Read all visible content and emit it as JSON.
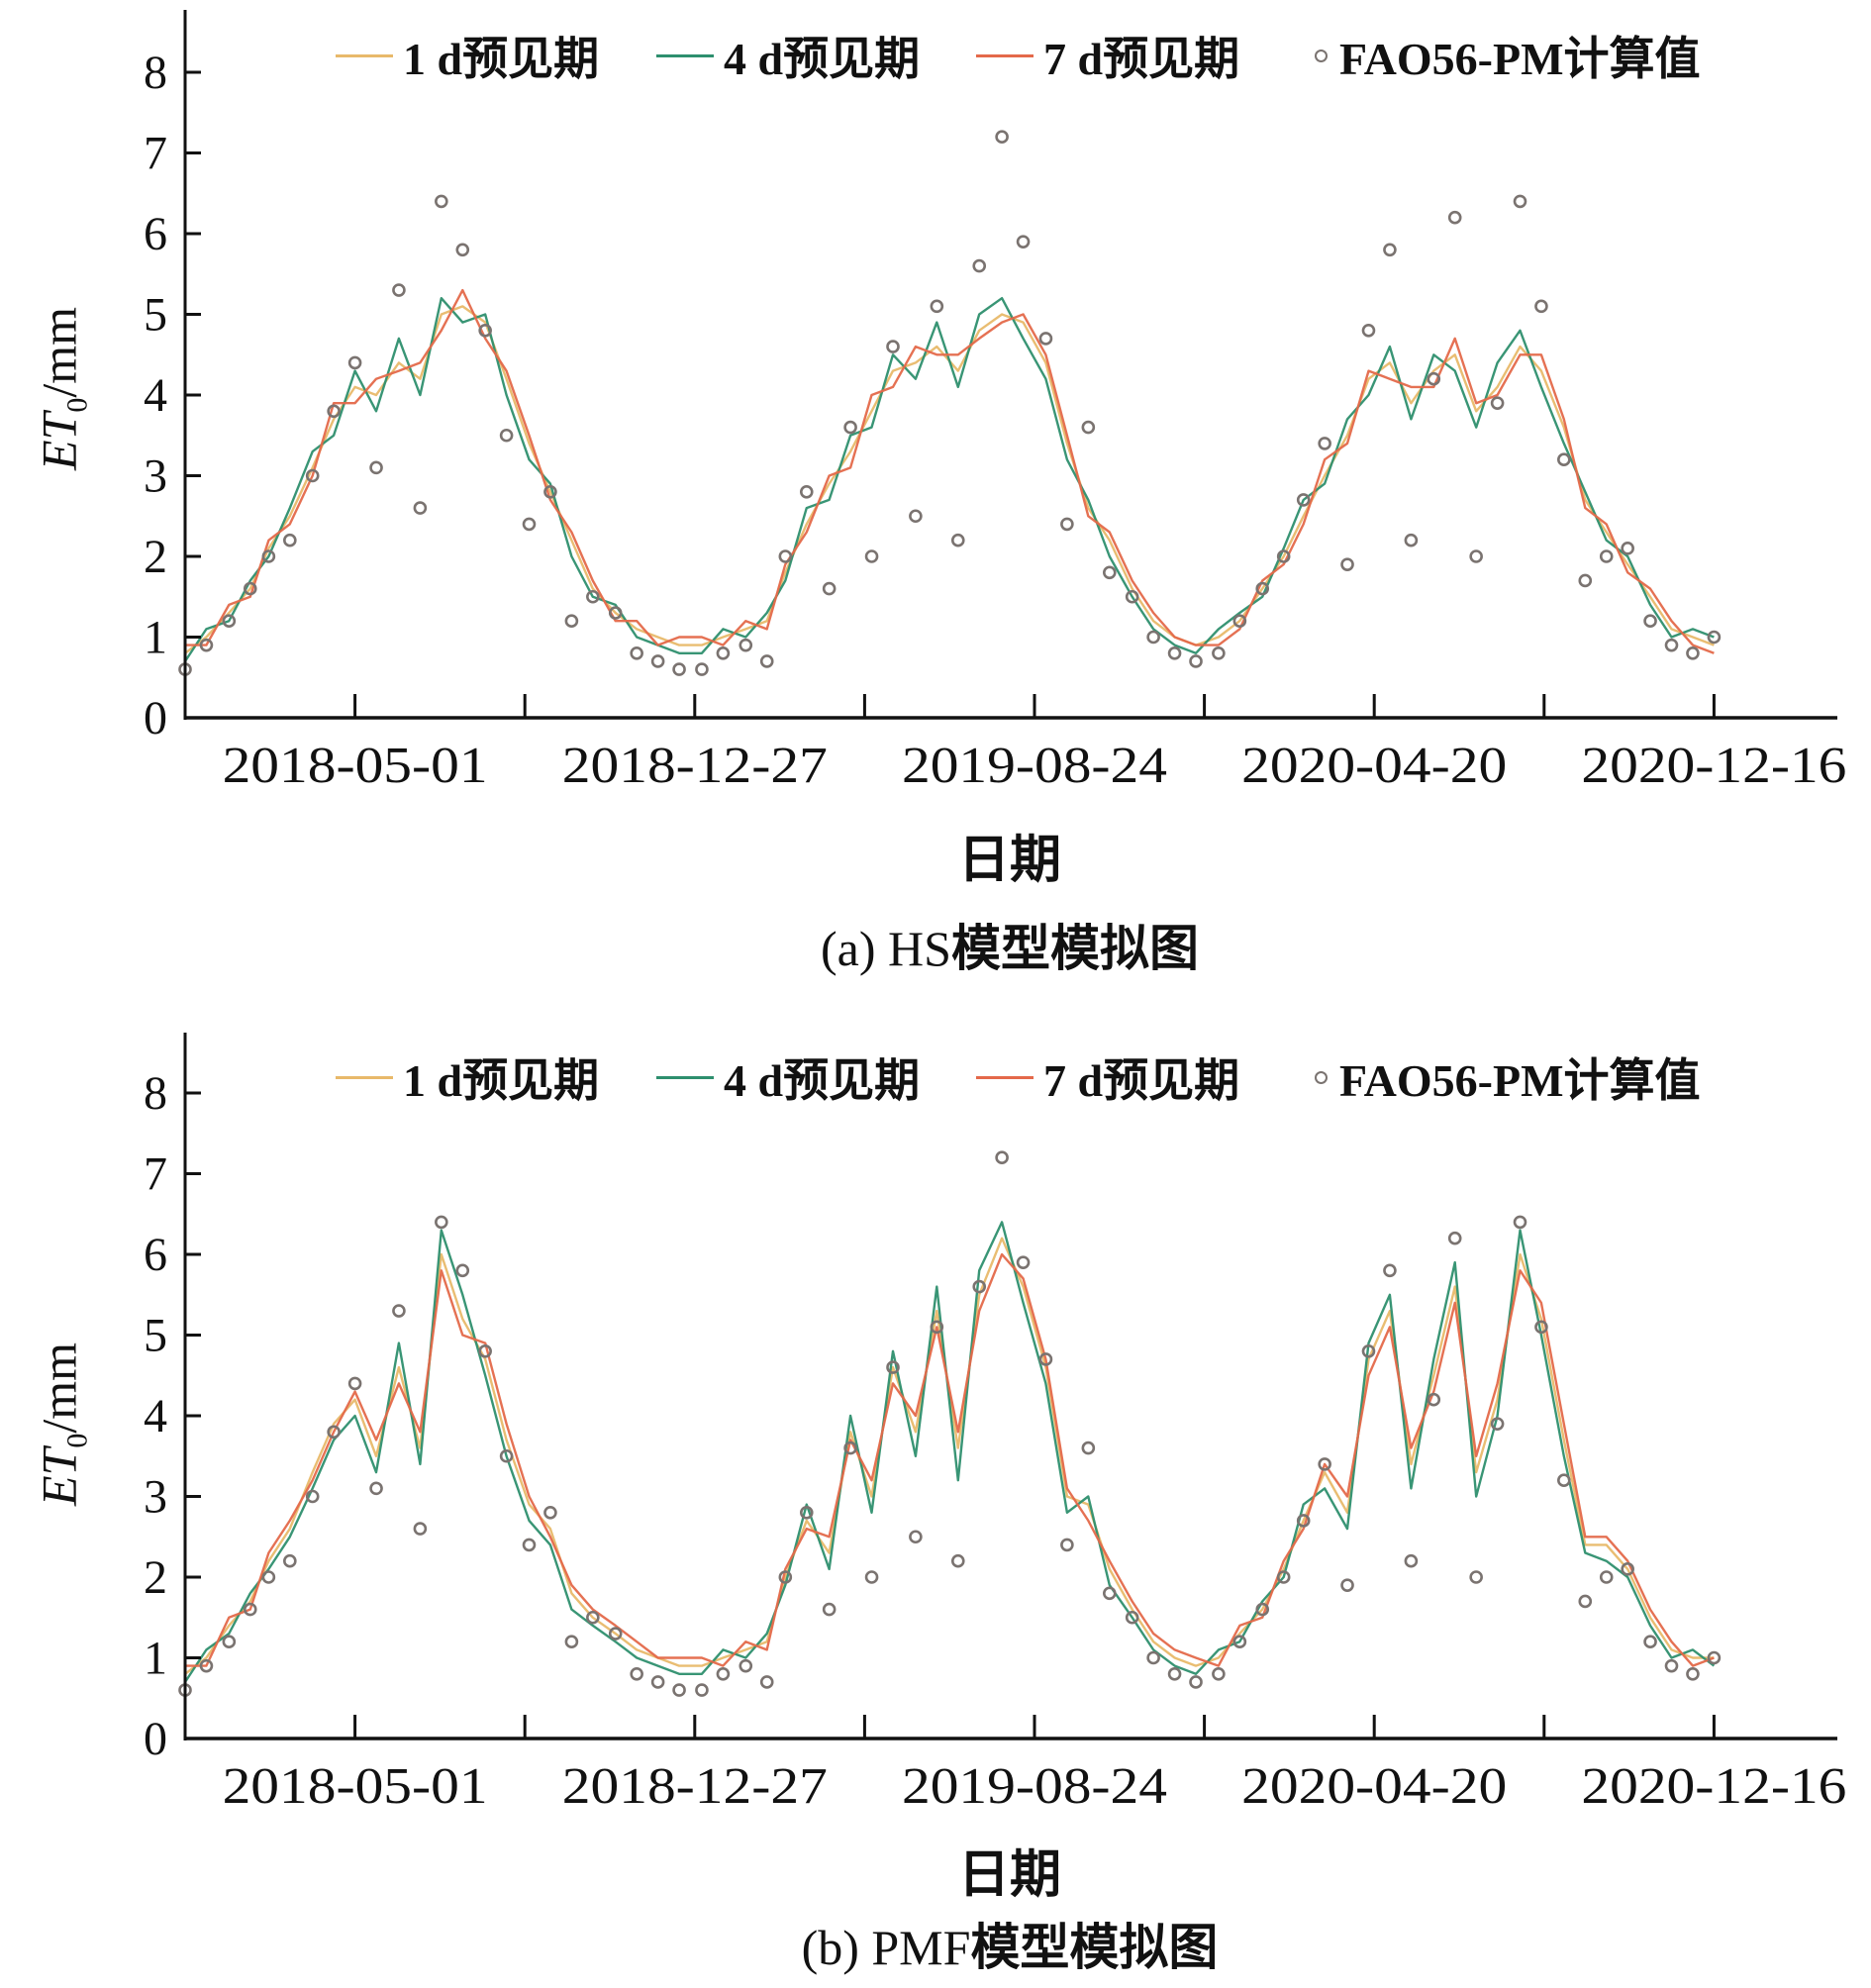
{
  "legend": {
    "items": [
      {
        "label": "1 d预见期",
        "color": "#e8b96a",
        "marker": "line"
      },
      {
        "label": "4 d预见期",
        "color": "#2e8f6e",
        "marker": "line"
      },
      {
        "label": "7 d预见期",
        "color": "#e4694a",
        "marker": "line"
      },
      {
        "label": "FAO56-PM计算值",
        "color": "#7a7370",
        "marker": "open-circle"
      }
    ]
  },
  "chart_data": [
    {
      "type": "line",
      "caption_prefix": "(a) HS",
      "caption_suffix": "模型模拟图",
      "xlabel": "日期",
      "ylabel_main": "ET",
      "ylabel_sub": "0",
      "ylabel_unit": "/mm",
      "ylim": [
        0,
        8
      ],
      "yticks": [
        0,
        1,
        2,
        3,
        4,
        5,
        6,
        7,
        8
      ],
      "xticks_labeled": [
        "2018-05-01",
        "2018-12-27",
        "2019-08-24",
        "2020-04-20",
        "2020-12-16"
      ],
      "grid": false,
      "legend_position": "top",
      "x": [
        "2018-01-01",
        "2018-01-16",
        "2018-02-01",
        "2018-02-16",
        "2018-03-01",
        "2018-03-16",
        "2018-04-01",
        "2018-04-16",
        "2018-05-01",
        "2018-05-16",
        "2018-06-01",
        "2018-06-16",
        "2018-07-01",
        "2018-07-16",
        "2018-08-01",
        "2018-08-16",
        "2018-09-01",
        "2018-09-16",
        "2018-10-01",
        "2018-10-16",
        "2018-11-01",
        "2018-11-16",
        "2018-12-01",
        "2018-12-16",
        "2019-01-01",
        "2019-01-16",
        "2019-02-01",
        "2019-02-16",
        "2019-03-01",
        "2019-03-16",
        "2019-04-01",
        "2019-04-16",
        "2019-05-01",
        "2019-05-16",
        "2019-06-01",
        "2019-06-16",
        "2019-07-01",
        "2019-07-16",
        "2019-08-01",
        "2019-08-16",
        "2019-09-01",
        "2019-09-16",
        "2019-10-01",
        "2019-10-16",
        "2019-11-01",
        "2019-11-16",
        "2019-12-01",
        "2019-12-16",
        "2020-01-01",
        "2020-01-16",
        "2020-02-01",
        "2020-02-16",
        "2020-03-01",
        "2020-03-16",
        "2020-04-01",
        "2020-04-16",
        "2020-05-01",
        "2020-05-16",
        "2020-06-01",
        "2020-06-16",
        "2020-07-01",
        "2020-07-16",
        "2020-08-01",
        "2020-08-16",
        "2020-09-01",
        "2020-09-16",
        "2020-10-01",
        "2020-10-16",
        "2020-11-01",
        "2020-11-16",
        "2020-12-01",
        "2020-12-16"
      ],
      "series": [
        {
          "name": "1 d预见期",
          "type": "line",
          "values": [
            0.8,
            1.0,
            1.3,
            1.6,
            2.1,
            2.5,
            3.1,
            3.7,
            4.1,
            4.0,
            4.4,
            4.2,
            5.0,
            5.1,
            4.9,
            4.2,
            3.4,
            2.8,
            2.2,
            1.6,
            1.3,
            1.1,
            1.0,
            0.9,
            0.9,
            1.0,
            1.1,
            1.2,
            1.8,
            2.4,
            2.9,
            3.3,
            3.8,
            4.3,
            4.4,
            4.6,
            4.3,
            4.8,
            5.0,
            4.9,
            4.4,
            3.4,
            2.6,
            2.2,
            1.6,
            1.2,
            1.0,
            0.9,
            1.0,
            1.2,
            1.6,
            2.0,
            2.5,
            3.0,
            3.5,
            4.2,
            4.4,
            3.9,
            4.3,
            4.5,
            3.8,
            4.1,
            4.6,
            4.3,
            3.6,
            2.7,
            2.3,
            1.9,
            1.5,
            1.1,
            1.0,
            0.9
          ]
        },
        {
          "name": "4 d预见期",
          "type": "line",
          "values": [
            0.7,
            1.1,
            1.2,
            1.7,
            2.0,
            2.6,
            3.3,
            3.5,
            4.3,
            3.8,
            4.7,
            4.0,
            5.2,
            4.9,
            5.0,
            4.0,
            3.2,
            2.9,
            2.0,
            1.5,
            1.4,
            1.0,
            0.9,
            0.8,
            0.8,
            1.1,
            1.0,
            1.3,
            1.7,
            2.6,
            2.7,
            3.5,
            3.6,
            4.5,
            4.2,
            4.9,
            4.1,
            5.0,
            5.2,
            4.7,
            4.2,
            3.2,
            2.7,
            2.0,
            1.5,
            1.1,
            0.9,
            0.8,
            1.1,
            1.3,
            1.5,
            2.1,
            2.7,
            2.9,
            3.7,
            4.0,
            4.6,
            3.7,
            4.5,
            4.3,
            3.6,
            4.4,
            4.8,
            4.1,
            3.4,
            2.8,
            2.2,
            2.0,
            1.4,
            1.0,
            1.1,
            1.0
          ]
        },
        {
          "name": "7 d预见期",
          "type": "line",
          "values": [
            0.9,
            0.9,
            1.4,
            1.5,
            2.2,
            2.4,
            3.0,
            3.9,
            3.9,
            4.2,
            4.3,
            4.4,
            4.8,
            5.3,
            4.7,
            4.3,
            3.5,
            2.7,
            2.3,
            1.7,
            1.2,
            1.2,
            0.9,
            1.0,
            1.0,
            0.9,
            1.2,
            1.1,
            1.9,
            2.3,
            3.0,
            3.1,
            4.0,
            4.1,
            4.6,
            4.5,
            4.5,
            4.7,
            4.9,
            5.0,
            4.5,
            3.5,
            2.5,
            2.3,
            1.7,
            1.3,
            1.0,
            0.9,
            0.9,
            1.1,
            1.7,
            1.9,
            2.4,
            3.2,
            3.4,
            4.3,
            4.2,
            4.1,
            4.1,
            4.7,
            3.9,
            4.0,
            4.5,
            4.5,
            3.7,
            2.6,
            2.4,
            1.8,
            1.6,
            1.2,
            0.9,
            0.8
          ]
        },
        {
          "name": "FAO56-PM计算值",
          "type": "scatter",
          "values": [
            0.6,
            0.9,
            1.2,
            1.6,
            2.0,
            2.2,
            3.0,
            3.8,
            4.4,
            3.1,
            5.3,
            2.6,
            6.4,
            5.8,
            4.8,
            3.5,
            2.4,
            2.8,
            1.2,
            1.5,
            1.3,
            0.8,
            0.7,
            0.6,
            0.6,
            0.8,
            0.9,
            0.7,
            2.0,
            2.8,
            1.6,
            3.6,
            2.0,
            4.6,
            2.5,
            5.1,
            2.2,
            5.6,
            7.2,
            5.9,
            4.7,
            2.4,
            3.6,
            1.8,
            1.5,
            1.0,
            0.8,
            0.7,
            0.8,
            1.2,
            1.6,
            2.0,
            2.7,
            3.4,
            1.9,
            4.8,
            5.8,
            2.2,
            4.2,
            6.2,
            2.0,
            3.9,
            6.4,
            5.1,
            3.2,
            1.7,
            2.0,
            2.1,
            1.2,
            0.9,
            0.8,
            1.0
          ]
        }
      ]
    },
    {
      "type": "line",
      "caption_prefix": "(b) PMF",
      "caption_suffix": "模型模拟图",
      "xlabel": "日期",
      "ylabel_main": "ET",
      "ylabel_sub": "0",
      "ylabel_unit": "/mm",
      "ylim": [
        0,
        8
      ],
      "yticks": [
        0,
        1,
        2,
        3,
        4,
        5,
        6,
        7,
        8
      ],
      "xticks_labeled": [
        "2018-05-01",
        "2018-12-27",
        "2019-08-24",
        "2020-04-20",
        "2020-12-16"
      ],
      "grid": false,
      "legend_position": "top",
      "x": [
        "2018-01-01",
        "2018-01-16",
        "2018-02-01",
        "2018-02-16",
        "2018-03-01",
        "2018-03-16",
        "2018-04-01",
        "2018-04-16",
        "2018-05-01",
        "2018-05-16",
        "2018-06-01",
        "2018-06-16",
        "2018-07-01",
        "2018-07-16",
        "2018-08-01",
        "2018-08-16",
        "2018-09-01",
        "2018-09-16",
        "2018-10-01",
        "2018-10-16",
        "2018-11-01",
        "2018-11-16",
        "2018-12-01",
        "2018-12-16",
        "2019-01-01",
        "2019-01-16",
        "2019-02-01",
        "2019-02-16",
        "2019-03-01",
        "2019-03-16",
        "2019-04-01",
        "2019-04-16",
        "2019-05-01",
        "2019-05-16",
        "2019-06-01",
        "2019-06-16",
        "2019-07-01",
        "2019-07-16",
        "2019-08-01",
        "2019-08-16",
        "2019-09-01",
        "2019-09-16",
        "2019-10-01",
        "2019-10-16",
        "2019-11-01",
        "2019-11-16",
        "2019-12-01",
        "2019-12-16",
        "2020-01-01",
        "2020-01-16",
        "2020-02-01",
        "2020-02-16",
        "2020-03-01",
        "2020-03-16",
        "2020-04-01",
        "2020-04-16",
        "2020-05-01",
        "2020-05-16",
        "2020-06-01",
        "2020-06-16",
        "2020-07-01",
        "2020-07-16",
        "2020-08-01",
        "2020-08-16",
        "2020-09-01",
        "2020-09-16",
        "2020-10-01",
        "2020-10-16",
        "2020-11-01",
        "2020-11-16",
        "2020-12-01",
        "2020-12-16"
      ],
      "series": [
        {
          "name": "1 d预见期",
          "type": "line",
          "values": [
            0.8,
            1.0,
            1.4,
            1.7,
            2.2,
            2.6,
            3.3,
            3.9,
            4.2,
            3.5,
            4.6,
            3.6,
            6.0,
            5.2,
            4.7,
            3.7,
            2.9,
            2.6,
            1.8,
            1.5,
            1.3,
            1.1,
            1.0,
            0.9,
            0.9,
            1.0,
            1.1,
            1.2,
            2.0,
            2.7,
            2.3,
            3.8,
            3.0,
            4.6,
            3.8,
            5.3,
            3.6,
            5.5,
            6.2,
            5.6,
            4.6,
            3.0,
            2.9,
            2.1,
            1.6,
            1.2,
            1.0,
            0.9,
            1.0,
            1.3,
            1.6,
            2.1,
            2.7,
            3.3,
            2.8,
            4.7,
            5.3,
            3.4,
            4.5,
            5.6,
            3.3,
            4.2,
            6.0,
            5.2,
            3.7,
            2.4,
            2.4,
            2.1,
            1.5,
            1.1,
            1.0,
            1.0
          ]
        },
        {
          "name": "4 d预见期",
          "type": "line",
          "values": [
            0.7,
            1.1,
            1.3,
            1.8,
            2.1,
            2.5,
            3.1,
            3.7,
            4.0,
            3.3,
            4.9,
            3.4,
            6.3,
            5.5,
            4.5,
            3.5,
            2.7,
            2.4,
            1.6,
            1.4,
            1.2,
            1.0,
            0.9,
            0.8,
            0.8,
            1.1,
            1.0,
            1.3,
            1.9,
            2.9,
            2.1,
            4.0,
            2.8,
            4.8,
            3.5,
            5.6,
            3.2,
            5.8,
            6.4,
            5.4,
            4.4,
            2.8,
            3.0,
            1.9,
            1.5,
            1.1,
            0.9,
            0.8,
            1.1,
            1.2,
            1.7,
            2.0,
            2.9,
            3.1,
            2.6,
            4.9,
            5.5,
            3.1,
            4.7,
            5.9,
            3.0,
            4.0,
            6.3,
            5.0,
            3.5,
            2.3,
            2.2,
            2.0,
            1.4,
            1.0,
            1.1,
            0.9
          ]
        },
        {
          "name": "7 d预见期",
          "type": "line",
          "values": [
            0.9,
            0.9,
            1.5,
            1.6,
            2.3,
            2.7,
            3.2,
            3.8,
            4.3,
            3.7,
            4.4,
            3.8,
            5.8,
            5.0,
            4.9,
            3.9,
            3.0,
            2.5,
            1.9,
            1.6,
            1.4,
            1.2,
            1.0,
            1.0,
            1.0,
            0.9,
            1.2,
            1.1,
            2.1,
            2.6,
            2.5,
            3.7,
            3.2,
            4.4,
            4.0,
            5.1,
            3.8,
            5.3,
            6.0,
            5.7,
            4.7,
            3.1,
            2.7,
            2.2,
            1.7,
            1.3,
            1.1,
            1.0,
            0.9,
            1.4,
            1.5,
            2.2,
            2.6,
            3.4,
            3.0,
            4.5,
            5.1,
            3.6,
            4.3,
            5.4,
            3.5,
            4.4,
            5.8,
            5.4,
            3.9,
            2.5,
            2.5,
            2.2,
            1.6,
            1.2,
            0.9,
            1.0
          ]
        },
        {
          "name": "FAO56-PM计算值",
          "type": "scatter",
          "values": [
            0.6,
            0.9,
            1.2,
            1.6,
            2.0,
            2.2,
            3.0,
            3.8,
            4.4,
            3.1,
            5.3,
            2.6,
            6.4,
            5.8,
            4.8,
            3.5,
            2.4,
            2.8,
            1.2,
            1.5,
            1.3,
            0.8,
            0.7,
            0.6,
            0.6,
            0.8,
            0.9,
            0.7,
            2.0,
            2.8,
            1.6,
            3.6,
            2.0,
            4.6,
            2.5,
            5.1,
            2.2,
            5.6,
            7.2,
            5.9,
            4.7,
            2.4,
            3.6,
            1.8,
            1.5,
            1.0,
            0.8,
            0.7,
            0.8,
            1.2,
            1.6,
            2.0,
            2.7,
            3.4,
            1.9,
            4.8,
            5.8,
            2.2,
            4.2,
            6.2,
            2.0,
            3.9,
            6.4,
            5.1,
            3.2,
            1.7,
            2.0,
            2.1,
            1.2,
            0.9,
            0.8,
            1.0
          ]
        }
      ]
    }
  ]
}
